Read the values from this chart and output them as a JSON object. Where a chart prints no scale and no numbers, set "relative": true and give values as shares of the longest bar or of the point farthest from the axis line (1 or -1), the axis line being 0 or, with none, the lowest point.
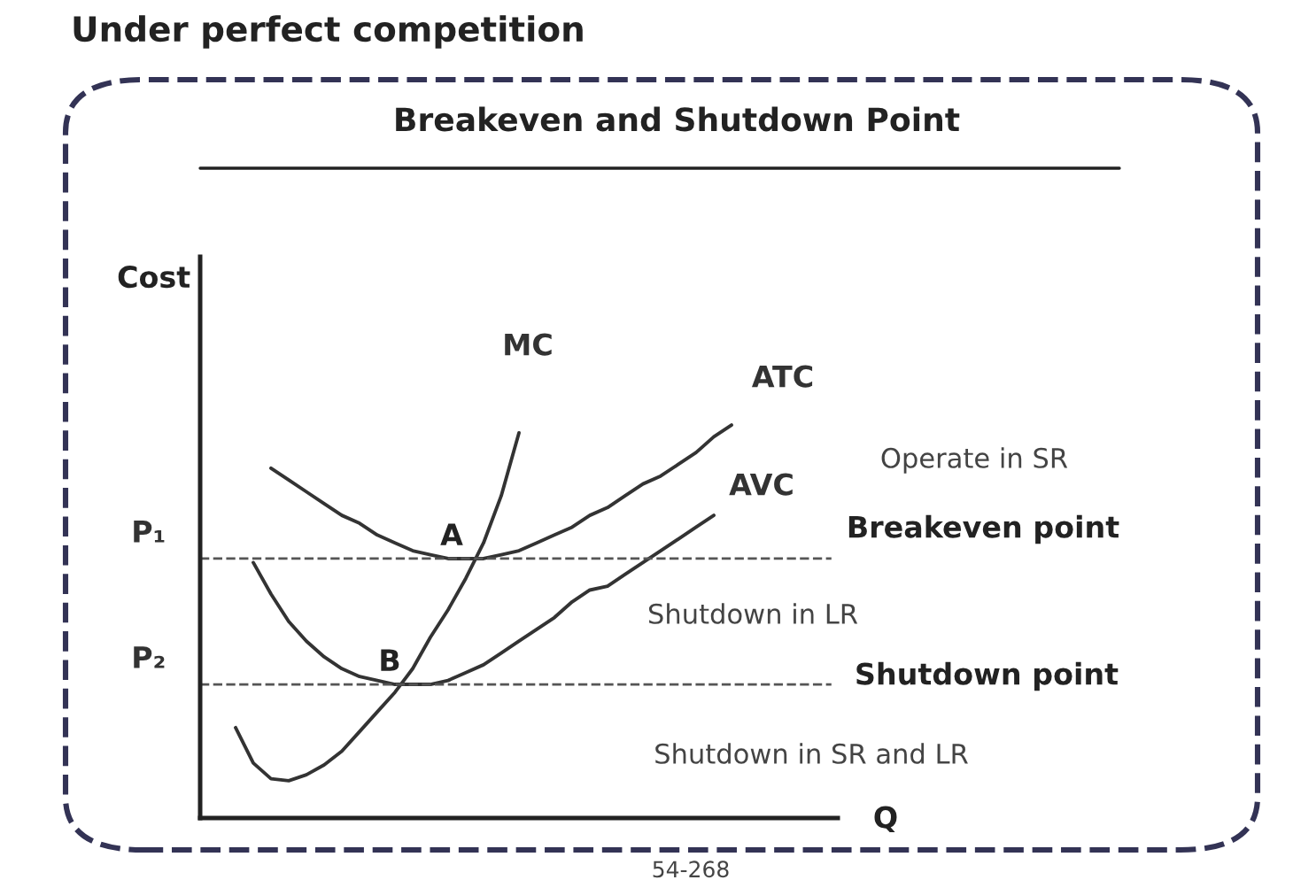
{
  "chart_data": {
    "type": "line",
    "relative": true,
    "title": "Under perfect competition",
    "subtitle": "Breakeven and Shutdown Point",
    "xlabel": "Q",
    "ylabel": "Cost",
    "categories": [
      null,
      null,
      null,
      null,
      null,
      null,
      null,
      null,
      null,
      null,
      null,
      null,
      null,
      null,
      null,
      null,
      null,
      null,
      null,
      null,
      null,
      null,
      null,
      null,
      null,
      null,
      null,
      null,
      null,
      null,
      null,
      null,
      null,
      null,
      null,
      null,
      null
    ],
    "series": [
      {
        "name": "MC",
        "color": "#333333",
        "values": [
          null,
          null,
          0.23,
          0.14,
          0.1,
          0.095,
          0.11,
          0.135,
          0.17,
          0.22,
          0.27,
          0.32,
          0.38,
          0.46,
          0.53,
          0.61,
          0.7,
          0.82,
          0.98,
          null,
          null,
          null,
          null,
          null,
          null,
          null,
          null,
          null,
          null,
          null,
          null,
          null,
          null,
          null,
          null,
          null,
          null
        ]
      },
      {
        "name": "ATC",
        "color": "#333333",
        "values": [
          null,
          null,
          null,
          null,
          0.89,
          0.86,
          0.83,
          0.8,
          0.77,
          0.75,
          0.72,
          0.7,
          0.68,
          0.67,
          0.66,
          0.66,
          0.66,
          0.67,
          0.68,
          0.7,
          0.72,
          0.74,
          0.77,
          0.79,
          0.82,
          0.85,
          0.87,
          0.9,
          0.93,
          0.97,
          1.0,
          null,
          null,
          null,
          null,
          null,
          null
        ]
      },
      {
        "name": "AVC",
        "color": "#333333",
        "values": [
          null,
          null,
          null,
          0.65,
          0.57,
          0.5,
          0.45,
          0.41,
          0.38,
          0.36,
          0.35,
          0.34,
          0.34,
          0.34,
          0.35,
          0.37,
          0.39,
          0.42,
          0.45,
          0.48,
          0.51,
          0.55,
          0.58,
          0.59,
          0.62,
          0.65,
          0.68,
          0.71,
          0.74,
          0.77,
          null,
          null,
          null,
          null,
          null,
          null,
          null
        ]
      }
    ],
    "ref_lines": [
      {
        "axis": "y",
        "value": 0.66,
        "label": "P₁",
        "line_style": "dashed",
        "color": "#555555"
      },
      {
        "axis": "y",
        "value": 0.34,
        "label": "P₂",
        "line_style": "dashed",
        "color": "#555555"
      }
    ],
    "annotations": [
      {
        "text": "A",
        "y": 0.66
      },
      {
        "text": "B",
        "y": 0.34
      },
      "Breakeven point",
      "Shutdown point",
      "Operate in SR",
      "Shutdown in LR",
      "Shutdown in SR and LR",
      "54-268"
    ],
    "legend": false,
    "grid": false,
    "marker": "none",
    "line_style": "solid"
  }
}
